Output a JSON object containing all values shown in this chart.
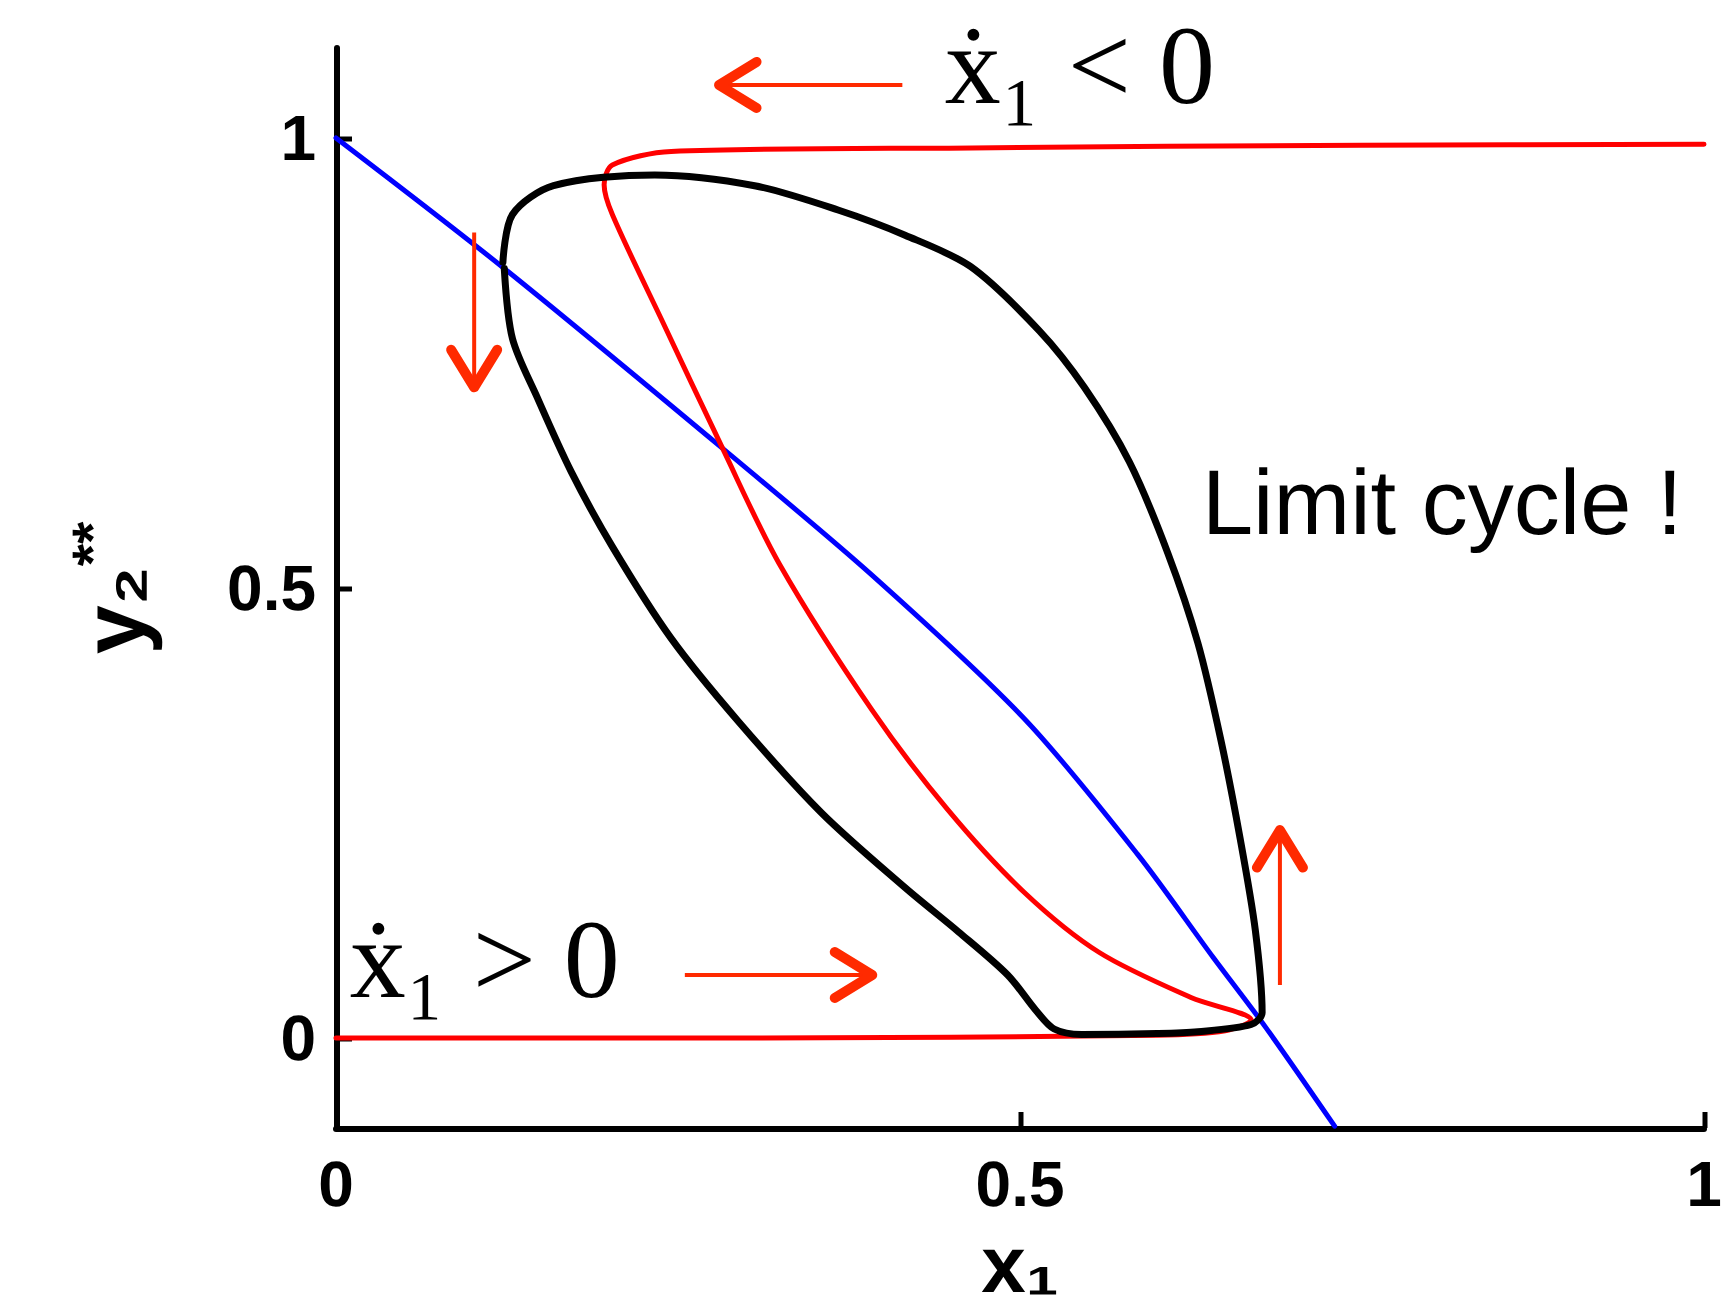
{
  "chart_data": {
    "type": "line",
    "xlabel": "x₁",
    "ylabel": "y₂$^{**}$",
    "annotations": [
      "ẋ₁ < 0",
      "ẋ₁ > 0",
      "Limit cycle !"
    ],
    "series": [
      {
        "color": "#0000ff",
        "x": [
          0,
          0.123,
          0.285,
          0.392,
          0.503,
          0.586,
          0.641,
          0.68,
          0.73
        ],
        "values": [
          1,
          0.855,
          0.652,
          0.514,
          0.355,
          0.204,
          0.09,
          0.011,
          -0.098
        ]
      },
      {
        "color": "#ff0000",
        "x": [
          0,
          0.3,
          0.6,
          0.65,
          0.669,
          0.625,
          0.558,
          0.503,
          0.447,
          0.392,
          0.324,
          0.282,
          0.239,
          0.202,
          0.196,
          0.202,
          0.245,
          0.465,
          0.75,
          1
        ],
        "values": [
          0,
          0,
          0.003,
          0.008,
          0.02,
          0.045,
          0.095,
          0.162,
          0.254,
          0.364,
          0.527,
          0.657,
          0.795,
          0.915,
          0.948,
          0.97,
          0.985,
          0.989,
          0.992,
          0.993
        ]
      },
      {
        "color": "#000000",
        "x": [
          0.123,
          0.129,
          0.147,
          0.172,
          0.202,
          0.245,
          0.294,
          0.355,
          0.416,
          0.455,
          0.491,
          0.512,
          0.525,
          0.545,
          0.6,
          0.63,
          0.669,
          0.677,
          0.672,
          0.661,
          0.647,
          0.63,
          0.608,
          0.58,
          0.547,
          0.514,
          0.464,
          0.416,
          0.367,
          0.306,
          0.233,
          0.159,
          0.129,
          0.122
        ],
        "values": [
          0.855,
          0.777,
          0.712,
          0.629,
          0.546,
          0.444,
          0.352,
          0.25,
          0.167,
          0.118,
          0.07,
          0.03,
          0.01,
          0.004,
          0.005,
          0.007,
          0.015,
          0.028,
          0.12,
          0.221,
          0.33,
          0.439,
          0.539,
          0.64,
          0.723,
          0.786,
          0.857,
          0.892,
          0.92,
          0.947,
          0.959,
          0.947,
          0.915,
          0.862
        ]
      }
    ],
    "xlim": [
      0,
      1
    ],
    "ylim": [
      -0.1,
      1.1
    ],
    "xticks": [
      0,
      0.5,
      1
    ],
    "yticks": [
      0,
      0.5,
      1
    ],
    "marker": "none",
    "line_style": "solid"
  }
}
